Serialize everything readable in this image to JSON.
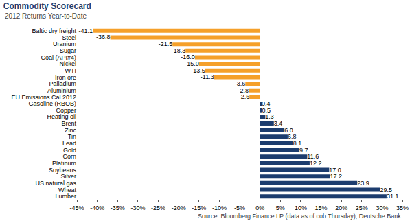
{
  "chart_data": {
    "type": "bar",
    "orientation": "horizontal",
    "title": "Commodity Scorecard",
    "subtitle": "2012 Returns Year-to-Date",
    "source": "Source: Bloomberg Finance LP (data as of cob Thursday), Deutsche Bank",
    "categories": [
      "Baltic dry freight",
      "Steel",
      "Uranium",
      "Sugar",
      "Coal (API#4)",
      "Nickel",
      "WTI",
      "Iron ore",
      "Palladium",
      "Aluminium",
      "EU Emissions Cal 2012",
      "Gasoline (RBOB)",
      "Copper",
      "Heating oil",
      "Brent",
      "Zinc",
      "Tin",
      "Lead",
      "Gold",
      "Corn",
      "Platinum",
      "Soybeans",
      "Silver",
      "US natural gas",
      "Wheat",
      "Lumber"
    ],
    "values": [
      -41.1,
      -36.8,
      -21.5,
      -18.3,
      -16.0,
      -15.0,
      -13.5,
      -11.3,
      -3.6,
      -2.8,
      -2.6,
      0.4,
      0.5,
      1.3,
      3.4,
      6.0,
      6.8,
      8.1,
      9.7,
      11.6,
      12.2,
      17.0,
      17.2,
      23.9,
      29.5,
      31.1
    ],
    "value_labels": [
      "-41.1",
      "-36.8",
      "-21.5",
      "-18.3",
      "-16.0",
      "-15.0",
      "-13.5",
      "-11.3",
      "-3.6",
      "-2.8",
      "-2.6",
      "0.4",
      "0.5",
      "1.3",
      "3.4",
      "6.0",
      "6.8",
      "8.1",
      "9.7",
      "11.6",
      "12.2",
      "17.0",
      "17.2",
      "23.9",
      "29.5",
      "31.1"
    ],
    "data_labels": true,
    "colors": [
      "#f5a02a",
      "#f5a02a",
      "#f5a02a",
      "#f5a02a",
      "#f5a02a",
      "#f5a02a",
      "#f5a02a",
      "#f5a02a",
      "#f5a02a",
      "#f5a02a",
      "#f5a02a",
      "#1c3c6e",
      "#1c3c6e",
      "#1c3c6e",
      "#1c3c6e",
      "#1c3c6e",
      "#1c3c6e",
      "#1c3c6e",
      "#1c3c6e",
      "#1c3c6e",
      "#1c3c6e",
      "#1c3c6e",
      "#1c3c6e",
      "#1c3c6e",
      "#1c3c6e",
      "#1c3c6e"
    ],
    "xlim": [
      -45,
      35
    ],
    "xticks": [
      {
        "value": -45,
        "label": "-45%"
      },
      {
        "value": -40,
        "label": "-40%"
      },
      {
        "value": -35,
        "label": "-35%"
      },
      {
        "value": -30,
        "label": "-30%"
      },
      {
        "value": -25,
        "label": "-25%"
      },
      {
        "value": -20,
        "label": "-20%"
      },
      {
        "value": -15,
        "label": "-15%"
      },
      {
        "value": -10,
        "label": "-10%"
      },
      {
        "value": -5,
        "label": "-5%"
      },
      {
        "value": 0,
        "label": "0%"
      },
      {
        "value": 5,
        "label": "5%"
      },
      {
        "value": 10,
        "label": "10%"
      },
      {
        "value": 15,
        "label": "15%"
      },
      {
        "value": 20,
        "label": "20%"
      },
      {
        "value": 25,
        "label": "25%"
      },
      {
        "value": 30,
        "label": "30%"
      },
      {
        "value": 35,
        "label": "35%"
      }
    ],
    "grid": false
  }
}
